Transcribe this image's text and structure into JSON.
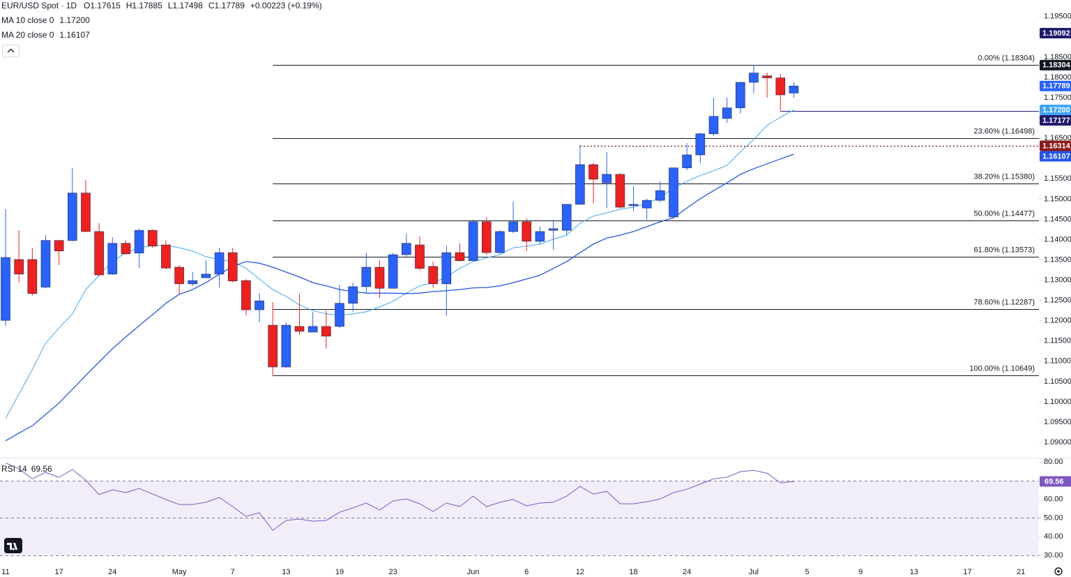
{
  "chart_data": {
    "type": "candlestick",
    "title": "EUR/USD Spot · 1D",
    "ohlc_header": [
      "O1.17615",
      "H1.17885",
      "L1.17498",
      "C1.17789",
      "+0.00223 (+0.19%)"
    ],
    "categories": [
      "11",
      null,
      null,
      null,
      "17",
      null,
      null,
      null,
      "24",
      null,
      null,
      null,
      null,
      "May",
      null,
      null,
      null,
      "7",
      null,
      null,
      null,
      "13",
      null,
      null,
      null,
      "19",
      null,
      null,
      null,
      "23",
      null,
      null,
      null,
      null,
      null,
      "Jun",
      null,
      null,
      null,
      "6",
      null,
      null,
      null,
      "12",
      null,
      null,
      null,
      "18",
      null,
      null,
      null,
      "24",
      null,
      null,
      null,
      null,
      "Jul",
      null,
      null,
      null,
      "5",
      null,
      null,
      null,
      "9",
      null,
      null,
      null,
      "13",
      null,
      null,
      null,
      "17",
      null,
      null,
      null,
      "21"
    ],
    "open": [
      1.1201,
      1.1351,
      1.1351,
      1.1283,
      1.1398,
      1.1398,
      1.1515,
      1.142,
      1.1315,
      1.1391,
      1.1367,
      1.1423,
      1.1387,
      1.1332,
      1.1291,
      1.1306,
      1.1315,
      1.1368,
      1.1299,
      1.1227,
      1.1189,
      1.1086,
      1.1186,
      1.1172,
      1.1186,
      1.1186,
      1.1243,
      1.1284,
      1.1332,
      1.128,
      1.1363,
      1.1387,
      1.1334,
      1.1291,
      1.1368,
      1.1348,
      1.1444,
      1.1368,
      1.142,
      1.1444,
      1.1396,
      1.1423,
      1.1423,
      1.1487,
      1.1585,
      1.154,
      1.1561,
      1.1484,
      1.1478,
      1.1497,
      1.1456,
      1.1577,
      1.1609,
      1.1661,
      1.1699,
      1.1725,
      1.1788,
      1.1804,
      1.1799,
      1.17615,
      null,
      null,
      null,
      null,
      null,
      null,
      null,
      null,
      null,
      null,
      null,
      null,
      null,
      null,
      null,
      null,
      null
    ],
    "high": [
      1.1475,
      1.1423,
      1.138,
      1.1411,
      1.14,
      1.1577,
      1.1547,
      1.1441,
      1.1406,
      1.1398,
      1.1427,
      1.1425,
      1.1398,
      1.1337,
      1.132,
      1.1349,
      1.138,
      1.138,
      1.1303,
      1.1268,
      1.1246,
      1.1196,
      1.1267,
      1.1222,
      1.1225,
      1.1289,
      1.1294,
      1.1367,
      1.1349,
      1.1367,
      1.1415,
      1.1408,
      1.1346,
      1.1385,
      1.1391,
      1.1449,
      1.1456,
      1.1423,
      1.1494,
      1.1453,
      1.1432,
      1.1449,
      1.1487,
      1.1633,
      1.159,
      1.1616,
      1.1564,
      1.1532,
      1.1501,
      1.1544,
      1.1578,
      1.1638,
      1.1664,
      1.175,
      1.175,
      1.1788,
      1.183,
      1.1812,
      1.181,
      1.17885,
      null,
      null,
      null,
      null,
      null,
      null,
      null,
      null,
      null,
      null,
      null,
      null,
      null,
      null,
      null,
      null,
      null
    ],
    "low": [
      1.1188,
      1.1294,
      1.1262,
      1.128,
      1.1337,
      1.1395,
      1.1418,
      1.131,
      1.1313,
      1.1363,
      1.133,
      1.138,
      1.1327,
      1.1265,
      1.1286,
      1.1306,
      1.1282,
      1.1294,
      1.1213,
      1.1196,
      1.1065,
      1.1083,
      1.1165,
      1.1172,
      1.1131,
      1.1182,
      1.1222,
      1.1268,
      1.1256,
      1.1279,
      1.1358,
      1.1324,
      1.1282,
      1.1212,
      1.1346,
      1.1348,
      1.1363,
      1.1365,
      1.1416,
      1.1372,
      1.1389,
      1.1375,
      1.1411,
      1.1487,
      1.1489,
      1.1478,
      1.1477,
      1.147,
      1.1449,
      1.1492,
      1.1453,
      1.1571,
      1.1589,
      1.1656,
      1.1688,
      1.1711,
      1.1761,
      1.175,
      1.1718,
      1.17498,
      null,
      null,
      null,
      null,
      null,
      null,
      null,
      null,
      null,
      null,
      null,
      null,
      null,
      null,
      null,
      null,
      null
    ],
    "close": [
      1.1356,
      1.1315,
      1.1267,
      1.1398,
      1.1372,
      1.1515,
      1.142,
      1.1313,
      1.1391,
      1.1365,
      1.1423,
      1.1384,
      1.133,
      1.1291,
      1.1299,
      1.1315,
      1.1368,
      1.1298,
      1.1227,
      1.1249,
      1.1086,
      1.1189,
      1.1174,
      1.1186,
      1.1162,
      1.1243,
      1.1284,
      1.1332,
      1.128,
      1.1363,
      1.1391,
      1.1329,
      1.1291,
      1.1368,
      1.1348,
      1.1444,
      1.1368,
      1.142,
      1.1444,
      1.1396,
      1.142,
      1.1427,
      1.1487,
      1.1585,
      1.1549,
      1.1561,
      1.148,
      1.1487,
      1.1497,
      1.1521,
      1.1577,
      1.1609,
      1.1661,
      1.1704,
      1.1725,
      1.1788,
      1.1811,
      1.1799,
      1.1757,
      1.17789,
      null,
      null,
      null,
      null,
      null,
      null,
      null,
      null,
      null,
      null,
      null,
      null,
      null,
      null,
      null,
      null,
      null
    ],
    "up_color": "#2962ff",
    "down_color": "#f0201f",
    "ylim": [
      1.0864,
      1.1991
    ],
    "yticks": [
      {
        "value": 1.195,
        "label": "1.19500"
      },
      {
        "value": 1.185,
        "label": "1.18500"
      },
      {
        "value": 1.18,
        "label": "1.18000"
      },
      {
        "value": 1.175,
        "label": "1.17500"
      },
      {
        "value": 1.165,
        "label": "1.16500"
      },
      {
        "value": 1.155,
        "label": "1.15500"
      },
      {
        "value": 1.15,
        "label": "1.15000"
      },
      {
        "value": 1.145,
        "label": "1.14500"
      },
      {
        "value": 1.14,
        "label": "1.14000"
      },
      {
        "value": 1.135,
        "label": "1.13500"
      },
      {
        "value": 1.13,
        "label": "1.13000"
      },
      {
        "value": 1.125,
        "label": "1.12500"
      },
      {
        "value": 1.12,
        "label": "1.12000"
      },
      {
        "value": 1.115,
        "label": "1.11500"
      },
      {
        "value": 1.11,
        "label": "1.11000"
      },
      {
        "value": 1.105,
        "label": "1.10500"
      },
      {
        "value": 1.1,
        "label": "1.10000"
      },
      {
        "value": 1.095,
        "label": "1.09500"
      },
      {
        "value": 1.09,
        "label": "1.09000"
      }
    ],
    "series": [
      {
        "name": "MA 10 close 0",
        "value_label": "1.17200",
        "color": "#42a5f5",
        "values": [
          1.0959,
          1.1019,
          1.1079,
          1.1145,
          1.1182,
          1.1217,
          1.1277,
          1.1312,
          1.1346,
          1.1368,
          1.138,
          1.1386,
          1.1386,
          1.138,
          1.1372,
          1.1358,
          1.1351,
          1.1346,
          1.1329,
          1.1303,
          1.1277,
          1.126,
          1.1239,
          1.1225,
          1.1217,
          1.1213,
          1.1217,
          1.1222,
          1.1234,
          1.1248,
          1.1268,
          1.1286,
          1.1294,
          1.1308,
          1.1329,
          1.1346,
          1.1355,
          1.1363,
          1.138,
          1.1384,
          1.1389,
          1.1401,
          1.1411,
          1.1441,
          1.1458,
          1.1466,
          1.1475,
          1.148,
          1.1489,
          1.1504,
          1.1527,
          1.1544,
          1.1558,
          1.157,
          1.1583,
          1.1616,
          1.1647,
          1.1682,
          1.1702,
          1.172,
          null,
          null,
          null,
          null,
          null,
          null,
          null,
          null,
          null,
          null,
          null,
          null,
          null,
          null,
          null,
          null,
          null
        ]
      },
      {
        "name": "MA 20 close 0",
        "color": "#2457e6",
        "values": [
          1.0904,
          1.0923,
          1.0941,
          1.0969,
          1.0997,
          1.1031,
          1.1065,
          1.1098,
          1.1131,
          1.116,
          1.1188,
          1.1215,
          1.1243,
          1.1265,
          1.1277,
          1.1294,
          1.1315,
          1.1334,
          1.1346,
          1.1342,
          1.1332,
          1.132,
          1.1308,
          1.1294,
          1.1286,
          1.1277,
          1.1272,
          1.1268,
          1.1268,
          1.1268,
          1.1267,
          1.1268,
          1.1272,
          1.1274,
          1.1277,
          1.1281,
          1.1282,
          1.1286,
          1.1294,
          1.1303,
          1.1312,
          1.1329,
          1.1346,
          1.1368,
          1.1389,
          1.1404,
          1.1411,
          1.142,
          1.1432,
          1.1444,
          1.1454,
          1.1478,
          1.1501,
          1.1521,
          1.154,
          1.1561,
          1.1575,
          1.1587,
          1.1599,
          1.16107,
          null,
          null,
          null,
          null,
          null,
          null,
          null,
          null,
          null,
          null,
          null,
          null,
          null,
          null,
          null,
          null,
          null
        ]
      }
    ],
    "fib_color": "#131722",
    "fib_levels": [
      {
        "value": 1.18304,
        "label": "0.00% (1.18304)"
      },
      {
        "value": 1.16498,
        "label": "23.60% (1.16498)"
      },
      {
        "value": 1.1538,
        "label": "38.20% (1.15380)"
      },
      {
        "value": 1.14477,
        "label": "50.00% (1.14477)"
      },
      {
        "value": 1.13573,
        "label": "61.80% (1.13573)"
      },
      {
        "value": 1.12287,
        "label": "78.60% (1.12287)"
      },
      {
        "value": 1.10649,
        "label": "100.00% (1.10649)"
      }
    ],
    "horizontal_lines": [
      {
        "value": 1.17177,
        "color": "#1f1b6b",
        "dashed": false
      },
      {
        "value": 1.16314,
        "color": "#8b1a1a",
        "dashed": true
      }
    ],
    "price_badges": [
      {
        "value": 1.19092,
        "color": "#1f1b6b"
      }
    ],
    "rsi": {
      "name": "RSI 14",
      "color": "#7e57c2",
      "ylim": [
        25.5,
        81.9
      ],
      "yticks": [
        {
          "value": 80,
          "label": "80.00"
        },
        {
          "value": 60,
          "label": "60.00"
        },
        {
          "value": 50,
          "label": "50.00"
        },
        {
          "value": 40,
          "label": "40.00"
        },
        {
          "value": 30,
          "label": "30.00"
        }
      ],
      "bands": [
        70,
        50,
        30
      ],
      "values": [
        79.5,
        76.3,
        71.0,
        74.4,
        71.8,
        75.9,
        70.3,
        62.5,
        65.1,
        63.6,
        65.8,
        62.8,
        59.9,
        57.2,
        57.2,
        58.4,
        61.0,
        56.1,
        50.9,
        52.8,
        43.4,
        48.7,
        49.4,
        48.3,
        48.7,
        53.1,
        55.4,
        58.0,
        54.3,
        59.1,
        60.2,
        57.6,
        53.5,
        58.0,
        56.1,
        61.7,
        56.1,
        58.4,
        59.9,
        56.5,
        58.0,
        58.4,
        61.7,
        66.9,
        62.8,
        64.3,
        57.6,
        57.6,
        58.7,
        60.2,
        63.6,
        65.4,
        68.1,
        71.0,
        71.8,
        74.8,
        75.5,
        74.0,
        68.8,
        69.56,
        null,
        null,
        null,
        null,
        null,
        null,
        null,
        null,
        null,
        null,
        null,
        null,
        null,
        null,
        null,
        null,
        null
      ]
    }
  }
}
